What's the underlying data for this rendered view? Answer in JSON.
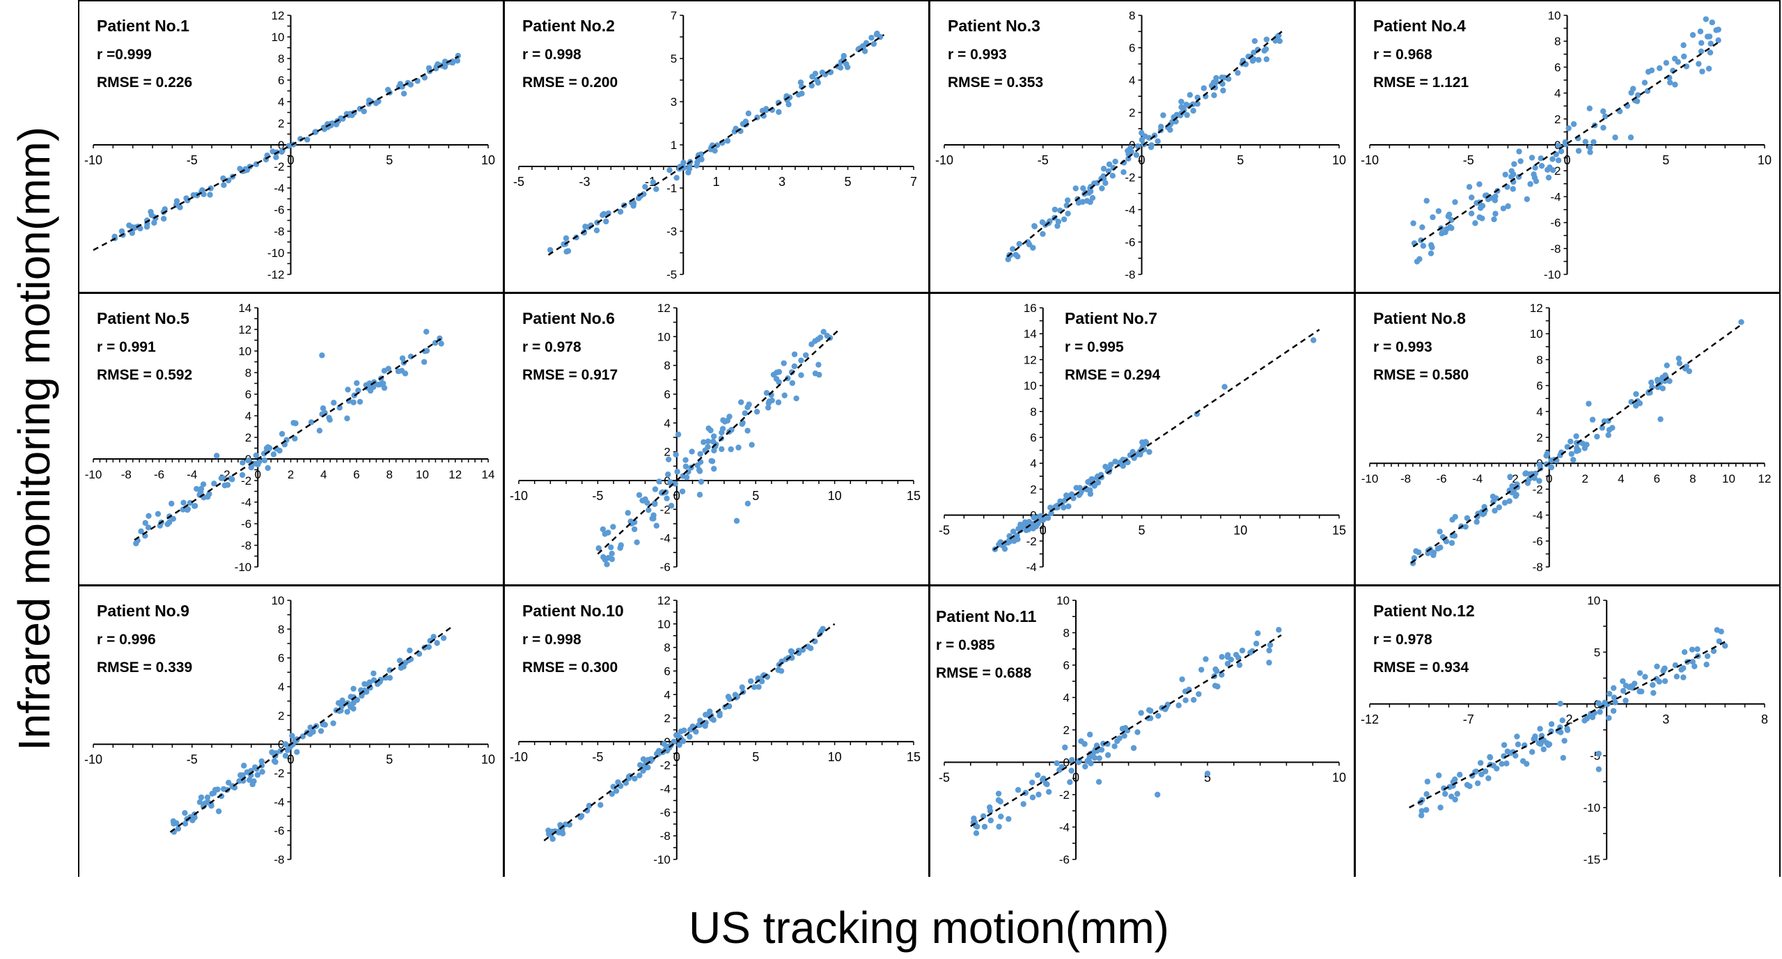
{
  "figure": {
    "ylabel": "Infrared monitoring motion(mm)",
    "xlabel": "US tracking motion(mm)",
    "colors": {
      "points": "#5b9bd5",
      "fit_line": "#000000",
      "axes": "#000000",
      "border": "#000000"
    }
  },
  "chart_data": [
    {
      "type": "scatter",
      "title": "Patient No.1",
      "r_label": "r =0.999",
      "rmse_label": "RMSE = 0.226",
      "xlim": [
        -10,
        10
      ],
      "ylim": [
        -12,
        12
      ],
      "xticks": [
        -10,
        -5,
        0,
        5,
        10
      ],
      "xticklabels": [
        "-10",
        "-5",
        "0",
        "5",
        "10"
      ],
      "yticks": [
        -12,
        -10,
        -8,
        -6,
        -4,
        -2,
        0,
        2,
        4,
        6,
        8,
        10,
        12
      ],
      "yticklabels": [
        "-12",
        "-10",
        "-8",
        "-6",
        "-4",
        "-2",
        "0",
        "2",
        "4",
        "6",
        "8",
        "10",
        "12"
      ],
      "fit": {
        "slope": 0.97,
        "intercept": -0.05,
        "x_range": [
          -10,
          8.5
        ]
      },
      "points": {
        "x_range": [
          -9,
          8.5
        ],
        "n": 110,
        "noise": 0.22
      }
    },
    {
      "type": "scatter",
      "title": "Patient No.2",
      "r_label": "r = 0.998",
      "rmse_label": "RMSE = 0.200",
      "xlim": [
        -5,
        7
      ],
      "ylim": [
        -5,
        7
      ],
      "xticks": [
        -5,
        -3,
        -1,
        1,
        3,
        5,
        7
      ],
      "xticklabels": [
        "-5",
        "-3",
        "-1",
        "1",
        "3",
        "5",
        "7"
      ],
      "yticks": [
        -5,
        -3,
        -1,
        1,
        3,
        5,
        7
      ],
      "yticklabels": [
        "-5",
        "-3",
        "-1",
        "1",
        "3",
        "5",
        "7"
      ],
      "fit": {
        "slope": 1.0,
        "intercept": 0.0,
        "x_range": [
          -4.1,
          6.1
        ]
      },
      "points": {
        "x_range": [
          -4.1,
          6.1
        ],
        "n": 110,
        "noise": 0.2
      }
    },
    {
      "type": "scatter",
      "title": "Patient No.3",
      "r_label": "r = 0.993",
      "rmse_label": "RMSE = 0.353",
      "xlim": [
        -10,
        10
      ],
      "ylim": [
        -8,
        8
      ],
      "xticks": [
        -10,
        -5,
        0,
        5,
        10
      ],
      "xticklabels": [
        "-10",
        "-5",
        "0",
        "5",
        "10"
      ],
      "yticks": [
        -8,
        -6,
        -4,
        -2,
        0,
        2,
        4,
        6,
        8
      ],
      "yticklabels": [
        "-8",
        "-6",
        "-4",
        "-2",
        "0",
        "2",
        "4",
        "6",
        "8"
      ],
      "fit": {
        "slope": 1.0,
        "intercept": -0.1,
        "x_range": [
          -6.8,
          7.1
        ]
      },
      "points": {
        "x_range": [
          -6.8,
          7
        ],
        "n": 130,
        "noise": 0.4
      }
    },
    {
      "type": "scatter",
      "title": "Patient No.4",
      "r_label": "r = 0.968",
      "rmse_label": "RMSE = 1.121",
      "xlim": [
        -10,
        10
      ],
      "ylim": [
        -10,
        10
      ],
      "xticks": [
        -10,
        -5,
        0,
        5,
        10
      ],
      "xticklabels": [
        "-10",
        "-5",
        "0",
        "5",
        "10"
      ],
      "yticks": [
        -10,
        -8,
        -6,
        -4,
        -2,
        0,
        2,
        4,
        6,
        8,
        10
      ],
      "yticklabels": [
        "-10",
        "-8",
        "-6",
        "-4",
        "-2",
        "0",
        "2",
        "4",
        "6",
        "8",
        "10"
      ],
      "fit": {
        "slope": 1.02,
        "intercept": 0.1,
        "x_range": [
          -7.8,
          7.7
        ]
      },
      "points": {
        "x_range": [
          -7.8,
          7.7
        ],
        "n": 130,
        "noise": 1.1
      }
    },
    {
      "type": "scatter",
      "title": "Patient No.5",
      "r_label": "r = 0.991",
      "rmse_label": "RMSE = 0.592",
      "xlim": [
        -10,
        14
      ],
      "ylim": [
        -10,
        14
      ],
      "xticks": [
        -10,
        -8,
        -6,
        -4,
        -2,
        0,
        2,
        4,
        6,
        8,
        10,
        12,
        14
      ],
      "xticklabels": [
        "-10",
        "-8",
        "-6",
        "-4",
        "-2",
        "0",
        "2",
        "4",
        "6",
        "8",
        "10",
        "12",
        "14"
      ],
      "yticks": [
        -10,
        -8,
        -6,
        -4,
        -2,
        0,
        2,
        4,
        6,
        8,
        10,
        12,
        14
      ],
      "yticklabels": [
        "-10",
        "-8",
        "-6",
        "-4",
        "-2",
        "0",
        "2",
        "4",
        "6",
        "8",
        "10",
        "12",
        "14"
      ],
      "fit": {
        "slope": 1.0,
        "intercept": 0.0,
        "x_range": [
          -7.5,
          11.3
        ]
      },
      "points": {
        "x_range": [
          -7.5,
          11.3
        ],
        "n": 110,
        "noise": 0.5
      },
      "extra_points": [
        [
          3.9,
          9.6
        ],
        [
          -2.5,
          0.3
        ]
      ]
    },
    {
      "type": "scatter",
      "title": "Patient No.6",
      "r_label": "r = 0.978",
      "rmse_label": "RMSE = 0.917",
      "xlim": [
        -10,
        15
      ],
      "ylim": [
        -6,
        12
      ],
      "xticks": [
        -10,
        -5,
        0,
        5,
        10,
        15
      ],
      "xticklabels": [
        "-10",
        "-5",
        "0",
        "5",
        "10",
        "15"
      ],
      "yticks": [
        -6,
        -4,
        -2,
        0,
        2,
        4,
        6,
        8,
        10,
        12
      ],
      "yticklabels": [
        "-6",
        "-4",
        "-2",
        "0",
        "2",
        "4",
        "6",
        "8",
        "10",
        "12"
      ],
      "fit": {
        "slope": 1.02,
        "intercept": 0.0,
        "x_range": [
          -5,
          10.3
        ]
      },
      "points": {
        "x_range": [
          -5,
          10
        ],
        "n": 130,
        "noise": 0.85
      },
      "extra_points": [
        [
          3.8,
          -2.8
        ],
        [
          4.5,
          -1.6
        ],
        [
          0.1,
          3.2
        ],
        [
          1.8,
          2.1
        ]
      ]
    },
    {
      "type": "scatter",
      "title": "Patient No.7",
      "r_label": "r = 0.995",
      "rmse_label": "RMSE = 0.294",
      "xlim": [
        -5,
        15
      ],
      "ylim": [
        -4,
        16
      ],
      "xticks": [
        -5,
        0,
        5,
        10,
        15
      ],
      "xticklabels": [
        "-5",
        "0",
        "5",
        "10",
        "15"
      ],
      "yticks": [
        -4,
        -2,
        0,
        2,
        4,
        6,
        8,
        10,
        12,
        14,
        16
      ],
      "yticklabels": [
        "-4",
        "-2",
        "0",
        "2",
        "4",
        "6",
        "8",
        "10",
        "12",
        "14",
        "16"
      ],
      "fit": {
        "slope": 1.03,
        "intercept": -0.1,
        "x_range": [
          -2.5,
          14
        ]
      },
      "points": {
        "x_range": [
          -2.5,
          5.5
        ],
        "n": 120,
        "noise": 0.3
      },
      "extra_points": [
        [
          9.2,
          9.9
        ],
        [
          13.7,
          13.5
        ],
        [
          7.8,
          7.8
        ],
        [
          5.0,
          5.1
        ]
      ]
    },
    {
      "type": "scatter",
      "title": "Patient No.8",
      "r_label": "r = 0.993",
      "rmse_label": "RMSE = 0.580",
      "xlim": [
        -10,
        12
      ],
      "ylim": [
        -8,
        12
      ],
      "xticks": [
        -10,
        -8,
        -6,
        -4,
        -2,
        0,
        2,
        4,
        6,
        8,
        10,
        12
      ],
      "xticklabels": [
        "-10",
        "-8",
        "-6",
        "-4",
        "-2",
        "0",
        "2",
        "4",
        "6",
        "8",
        "10",
        "12"
      ],
      "yticks": [
        -8,
        -6,
        -4,
        -2,
        0,
        2,
        4,
        6,
        8,
        10,
        12
      ],
      "yticklabels": [
        "-8",
        "-6",
        "-4",
        "-2",
        "0",
        "2",
        "4",
        "6",
        "8",
        "10",
        "12"
      ],
      "fit": {
        "slope": 1.0,
        "intercept": 0.0,
        "x_range": [
          -7.7,
          10.8
        ]
      },
      "points": {
        "x_range": [
          -7.7,
          8
        ],
        "n": 120,
        "noise": 0.5
      },
      "extra_points": [
        [
          10.7,
          10.9
        ],
        [
          6.2,
          3.4
        ],
        [
          2.2,
          4.6
        ]
      ]
    },
    {
      "type": "scatter",
      "title": "Patient No.9",
      "r_label": "r = 0.996",
      "rmse_label": "RMSE = 0.339",
      "xlim": [
        -10,
        10
      ],
      "ylim": [
        -8,
        10
      ],
      "xticks": [
        -10,
        -5,
        0,
        5,
        10
      ],
      "xticklabels": [
        "-10",
        "-5",
        "0",
        "5",
        "10"
      ],
      "yticks": [
        -8,
        -6,
        -4,
        -2,
        0,
        2,
        4,
        6,
        8,
        10
      ],
      "yticklabels": [
        "-8",
        "-6",
        "-4",
        "-2",
        "0",
        "2",
        "4",
        "6",
        "8",
        "10"
      ],
      "fit": {
        "slope": 1.0,
        "intercept": 0.0,
        "x_range": [
          -6.1,
          8.1
        ]
      },
      "points": {
        "x_range": [
          -6,
          8
        ],
        "n": 130,
        "noise": 0.35
      }
    },
    {
      "type": "scatter",
      "title": "Patient No.10",
      "r_label": "r = 0.998",
      "rmse_label": "RMSE = 0.300",
      "xlim": [
        -10,
        15
      ],
      "ylim": [
        -10,
        12
      ],
      "xticks": [
        -10,
        -5,
        0,
        5,
        10,
        15
      ],
      "xticklabels": [
        "-10",
        "-5",
        "0",
        "5",
        "10",
        "15"
      ],
      "yticks": [
        -10,
        -8,
        -6,
        -4,
        -2,
        0,
        2,
        4,
        6,
        8,
        10,
        12
      ],
      "yticklabels": [
        "-10",
        "-8",
        "-6",
        "-4",
        "-2",
        "0",
        "2",
        "4",
        "6",
        "8",
        "10",
        "12"
      ],
      "fit": {
        "slope": 1.0,
        "intercept": 0.0,
        "x_range": [
          -8.4,
          10
        ]
      },
      "points": {
        "x_range": [
          -8.2,
          9.8
        ],
        "n": 130,
        "noise": 0.3
      }
    },
    {
      "type": "scatter",
      "title": "Patient No.11",
      "r_label": "r = 0.985",
      "rmse_label": "RMSE = 0.688",
      "xlim": [
        -5,
        10
      ],
      "ylim": [
        -6,
        10
      ],
      "xticks": [
        -5,
        0,
        5,
        10
      ],
      "xticklabels": [
        "-5",
        "0",
        "5",
        "10"
      ],
      "yticks": [
        -6,
        -4,
        -2,
        0,
        2,
        4,
        6,
        8,
        10
      ],
      "yticklabels": [
        "-6",
        "-4",
        "-2",
        "0",
        "2",
        "4",
        "6",
        "8",
        "10"
      ],
      "fit": {
        "slope": 1.0,
        "intercept": 0.05,
        "x_range": [
          -4,
          7.8
        ]
      },
      "points": {
        "x_range": [
          -4,
          7.8
        ],
        "n": 110,
        "noise": 0.6
      },
      "extra_points": [
        [
          3.1,
          -2
        ],
        [
          5,
          -0.7
        ],
        [
          0.2,
          1.3
        ]
      ]
    },
    {
      "type": "scatter",
      "title": "Patient No.12",
      "r_label": "r = 0.978",
      "rmse_label": "RMSE = 0.934",
      "xlim": [
        -12,
        8
      ],
      "ylim": [
        -15,
        10
      ],
      "xticks": [
        -12,
        -7,
        -2,
        3,
        8
      ],
      "xticklabels": [
        "-12",
        "-7",
        "-2",
        "3",
        "8"
      ],
      "yticks": [
        -15,
        -10,
        -5,
        0,
        5,
        10
      ],
      "yticklabels": [
        "-15",
        "-10",
        "-5",
        "0",
        "5",
        "10"
      ],
      "fit": {
        "slope": 1.0,
        "intercept": 0.0,
        "x_range": [
          -10,
          6
        ]
      },
      "points": {
        "x_range": [
          -10,
          6
        ],
        "n": 130,
        "noise": 0.8
      },
      "extra_points": [
        [
          -0.4,
          -6.3
        ],
        [
          -0.4,
          -4.8
        ],
        [
          -2.2,
          -5.2
        ]
      ]
    }
  ]
}
